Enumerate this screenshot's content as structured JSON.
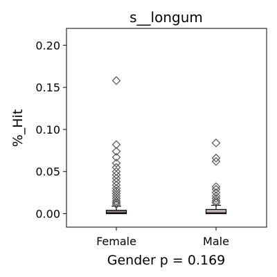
{
  "chart_data": {
    "type": "box",
    "title": "s__longum",
    "xlabel": "Gender p = 0.169",
    "ylabel": "%_Hit",
    "ylim": [
      -0.016,
      0.22
    ],
    "yticks": [
      0.0,
      0.05,
      0.1,
      0.15,
      0.2
    ],
    "ytick_labels": [
      "0.00",
      "0.05",
      "0.10",
      "0.15",
      "0.20"
    ],
    "categories": [
      "Female",
      "Male"
    ],
    "boxes": [
      {
        "category": "Female",
        "q1": 0.0,
        "median": 0.001,
        "q3": 0.004,
        "whisker_low": 0.0,
        "whisker_high": 0.009,
        "fill_color": "#8d7f7f",
        "outliers": [
          0.158,
          0.082,
          0.074,
          0.067,
          0.06,
          0.055,
          0.05,
          0.046,
          0.042,
          0.038,
          0.034,
          0.03,
          0.027,
          0.024,
          0.021,
          0.018,
          0.015,
          0.013,
          0.011
        ]
      },
      {
        "category": "Male",
        "q1": 0.0,
        "median": 0.001,
        "q3": 0.005,
        "whisker_low": 0.0,
        "whisker_high": 0.01,
        "fill_color": "#c1b3b3",
        "outliers": [
          0.084,
          0.066,
          0.062,
          0.032,
          0.029,
          0.025,
          0.021,
          0.018,
          0.015,
          0.013
        ]
      }
    ],
    "grid": false,
    "outlier_marker": "diamond"
  }
}
